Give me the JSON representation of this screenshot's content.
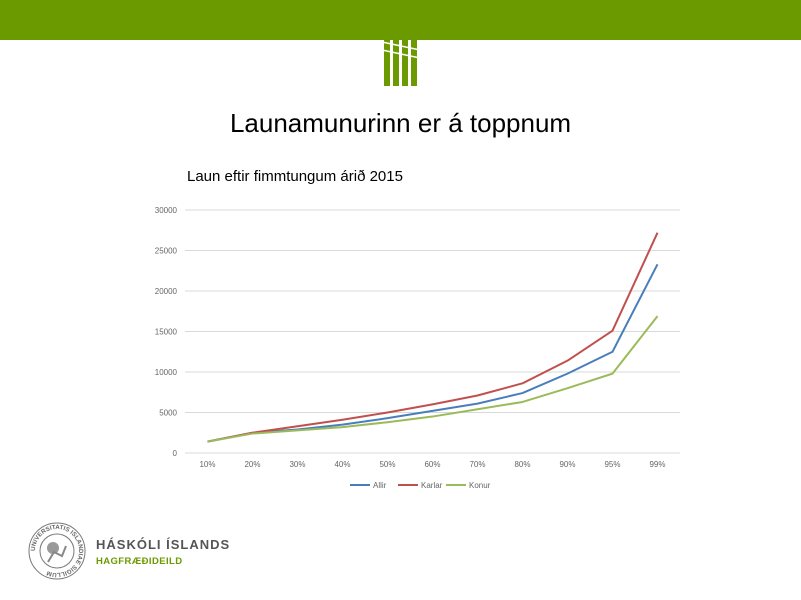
{
  "slide": {
    "title": "Launamunurinn er á toppnum",
    "subtitle": "Laun eftir fimmtungum árið 2015"
  },
  "branding": {
    "accent_color": "#6b9a00",
    "university": "HÁSKÓLI ÍSLANDS",
    "department": "HAGFRÆÐIDEILD",
    "seal_text": "UNIVERSITATIS ISLANDIAE SIGILLUM"
  },
  "chart_data": {
    "type": "line",
    "categories": [
      "10%",
      "20%",
      "30%",
      "40%",
      "50%",
      "60%",
      "70%",
      "80%",
      "90%",
      "95%",
      "99%"
    ],
    "series": [
      {
        "name": "Allir",
        "color": "#4a7ebb",
        "values": [
          1400,
          2500,
          2900,
          3500,
          4300,
          5200,
          6100,
          7400,
          9800,
          12500,
          23300
        ]
      },
      {
        "name": "Karlar",
        "color": "#c0504d",
        "values": [
          1400,
          2500,
          3300,
          4100,
          5000,
          6000,
          7100,
          8600,
          11400,
          15100,
          27200
        ]
      },
      {
        "name": "Konur",
        "color": "#9bbb59",
        "values": [
          1400,
          2400,
          2800,
          3200,
          3800,
          4500,
          5400,
          6300,
          8000,
          9800,
          16900
        ]
      }
    ],
    "yticks": [
      0,
      5000,
      10000,
      15000,
      20000,
      25000,
      30000
    ],
    "ylim": [
      0,
      30000
    ],
    "grid": true,
    "legend": "bottom"
  }
}
